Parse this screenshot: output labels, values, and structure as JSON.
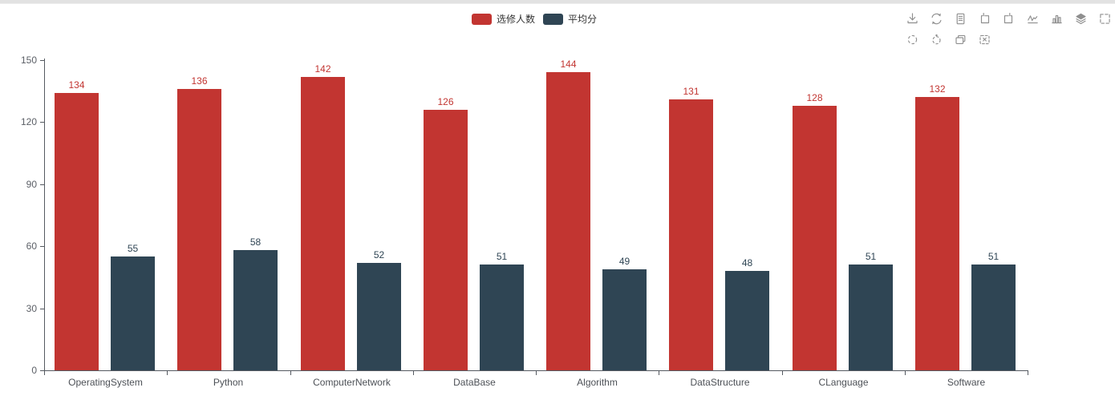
{
  "colors": {
    "series_red": "#c23531",
    "series_navy": "#2f4554",
    "axis": "#555a61",
    "axis_label": "#5b5f66",
    "legend_text": "#333333",
    "toolbox_icon": "#8f8f8f",
    "top_divider": "#e2e2e2"
  },
  "legend": {
    "items": [
      {
        "label": "选修人数",
        "color": "#c23531"
      },
      {
        "label": "平均分",
        "color": "#2f4554"
      }
    ]
  },
  "toolbar": {
    "row1": [
      "save-image-icon",
      "restore-icon",
      "data-view-icon",
      "zoom-in-icon",
      "zoom-back-icon",
      "line-chart-icon",
      "bar-chart-icon",
      "stack-icon",
      "tiled-icon"
    ],
    "row2": [
      "brush-rect-icon",
      "brush-polygon-icon",
      "brush-keep-icon",
      "brush-clear-icon"
    ]
  },
  "chart_data": {
    "type": "bar",
    "categories": [
      "OperatingSystem",
      "Python",
      "ComputerNetwork",
      "DataBase",
      "Algorithm",
      "DataStructure",
      "CLanguage",
      "Software"
    ],
    "series": [
      {
        "name": "选修人数",
        "color": "#c23531",
        "values": [
          134,
          136,
          142,
          126,
          144,
          131,
          128,
          132
        ]
      },
      {
        "name": "平均分",
        "color": "#2f4554",
        "values": [
          55,
          58,
          52,
          51,
          49,
          48,
          51,
          51
        ]
      }
    ],
    "title": "",
    "xlabel": "",
    "ylabel": "",
    "ylim": [
      0,
      150
    ],
    "yticks": [
      0,
      30,
      60,
      90,
      120,
      150
    ],
    "grid": false,
    "legend_position": "top-center",
    "value_labels": true
  }
}
